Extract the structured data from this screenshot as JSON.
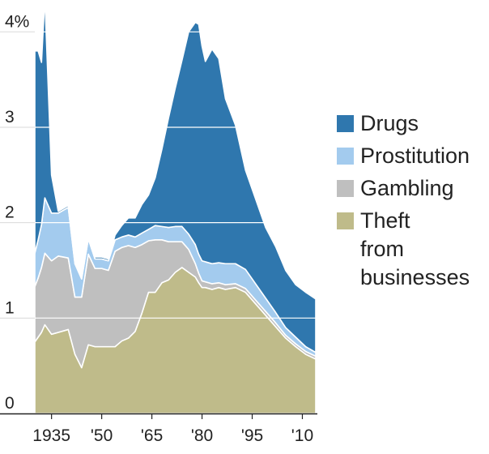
{
  "chart_data": {
    "type": "area",
    "stacked": true,
    "title": "",
    "xlabel": "",
    "ylabel": "",
    "ylim": [
      0,
      4.3
    ],
    "xlim": [
      1930,
      2014
    ],
    "y_ticks": [
      0,
      1,
      2,
      3,
      4
    ],
    "y_tick_labels": [
      "0",
      "1",
      "2",
      "3",
      "4%"
    ],
    "x_ticks": [
      1935,
      1950,
      1965,
      1980,
      1995,
      2010
    ],
    "x_tick_labels": [
      "1935",
      "'50",
      "'65",
      "'80",
      "'95",
      "'10"
    ],
    "grid": "horizontal",
    "legend_position": "right",
    "colors": {
      "Theft from businesses": "#bfbb8a",
      "Gambling": "#bfbfbf",
      "Prostitution": "#a3cbee",
      "Drugs": "#2f77ae"
    },
    "x": [
      1930,
      1931,
      1932,
      1933,
      1935,
      1937,
      1940,
      1942,
      1944,
      1946,
      1948,
      1950,
      1952,
      1954,
      1956,
      1958,
      1960,
      1962,
      1964,
      1966,
      1968,
      1970,
      1972,
      1974,
      1976,
      1978,
      1979,
      1980,
      1981,
      1983,
      1985,
      1987,
      1990,
      1993,
      1996,
      1999,
      2002,
      2005,
      2008,
      2011,
      2014
    ],
    "series": [
      {
        "name": "Theft from businesses",
        "values": [
          0.75,
          0.8,
          0.85,
          0.93,
          0.83,
          0.85,
          0.88,
          0.62,
          0.48,
          0.72,
          0.7,
          0.7,
          0.7,
          0.7,
          0.76,
          0.79,
          0.86,
          1.05,
          1.27,
          1.27,
          1.37,
          1.4,
          1.48,
          1.53,
          1.48,
          1.43,
          1.37,
          1.32,
          1.32,
          1.3,
          1.32,
          1.3,
          1.32,
          1.27,
          1.15,
          1.03,
          0.91,
          0.79,
          0.7,
          0.62,
          0.57
        ]
      },
      {
        "name": "Gambling",
        "values": [
          0.58,
          0.62,
          0.68,
          0.75,
          0.77,
          0.8,
          0.75,
          0.6,
          0.74,
          0.95,
          0.82,
          0.82,
          0.8,
          1.0,
          0.98,
          0.97,
          0.88,
          0.72,
          0.54,
          0.55,
          0.45,
          0.4,
          0.32,
          0.27,
          0.24,
          0.14,
          0.1,
          0.07,
          0.06,
          0.06,
          0.05,
          0.05,
          0.04,
          0.04,
          0.04,
          0.04,
          0.04,
          0.03,
          0.03,
          0.03,
          0.03
        ]
      },
      {
        "name": "Prostitution",
        "values": [
          0.35,
          0.4,
          0.45,
          0.58,
          0.5,
          0.45,
          0.53,
          0.35,
          0.19,
          0.16,
          0.1,
          0.1,
          0.1,
          0.12,
          0.11,
          0.11,
          0.11,
          0.12,
          0.12,
          0.15,
          0.14,
          0.15,
          0.16,
          0.16,
          0.16,
          0.2,
          0.2,
          0.21,
          0.21,
          0.21,
          0.21,
          0.22,
          0.21,
          0.2,
          0.17,
          0.14,
          0.11,
          0.08,
          0.07,
          0.05,
          0.04
        ]
      },
      {
        "name": "Drugs",
        "values": [
          2.12,
          1.98,
          1.7,
          2.1,
          0.4,
          0.02,
          0.02,
          0.02,
          0.02,
          0.02,
          0.02,
          0.02,
          0.02,
          0.05,
          0.12,
          0.18,
          0.2,
          0.3,
          0.36,
          0.5,
          0.81,
          1.15,
          1.45,
          1.74,
          2.12,
          2.33,
          2.41,
          2.25,
          2.1,
          2.25,
          2.14,
          1.73,
          1.45,
          1.04,
          0.89,
          0.74,
          0.69,
          0.6,
          0.55,
          0.57,
          0.56
        ]
      }
    ]
  },
  "legend": {
    "items": [
      {
        "key": "drugs",
        "label": "Drugs",
        "color": "#2f77ae"
      },
      {
        "key": "prostitution",
        "label": "Prostitution",
        "color": "#a3cbee"
      },
      {
        "key": "gambling",
        "label": "Gambling",
        "color": "#bfbfbf"
      },
      {
        "key": "theft",
        "label": "Theft from businesses",
        "color": "#bfbb8a",
        "lines": [
          "Theft",
          "from",
          "businesses"
        ]
      }
    ]
  }
}
